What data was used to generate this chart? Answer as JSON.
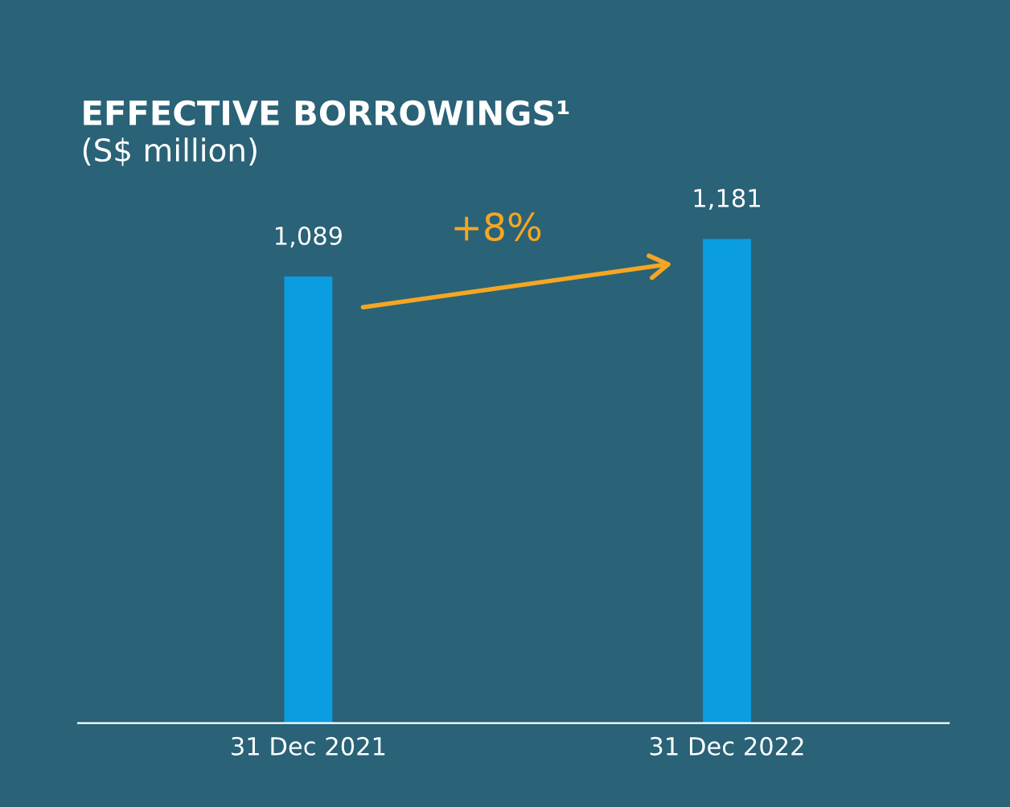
{
  "chart_data": {
    "type": "bar",
    "title": "EFFECTIVE BORROWINGS¹",
    "subtitle": "(S$ million)",
    "categories": [
      "31 Dec 2021",
      "31 Dec 2022"
    ],
    "values": [
      1089,
      1181
    ],
    "color": "#0a9de0",
    "value_labels": [
      "1,089",
      "1,181"
    ],
    "grid": false,
    "legend": false,
    "tick_labels": "x",
    "annotations": [
      "+8%"
    ]
  }
}
